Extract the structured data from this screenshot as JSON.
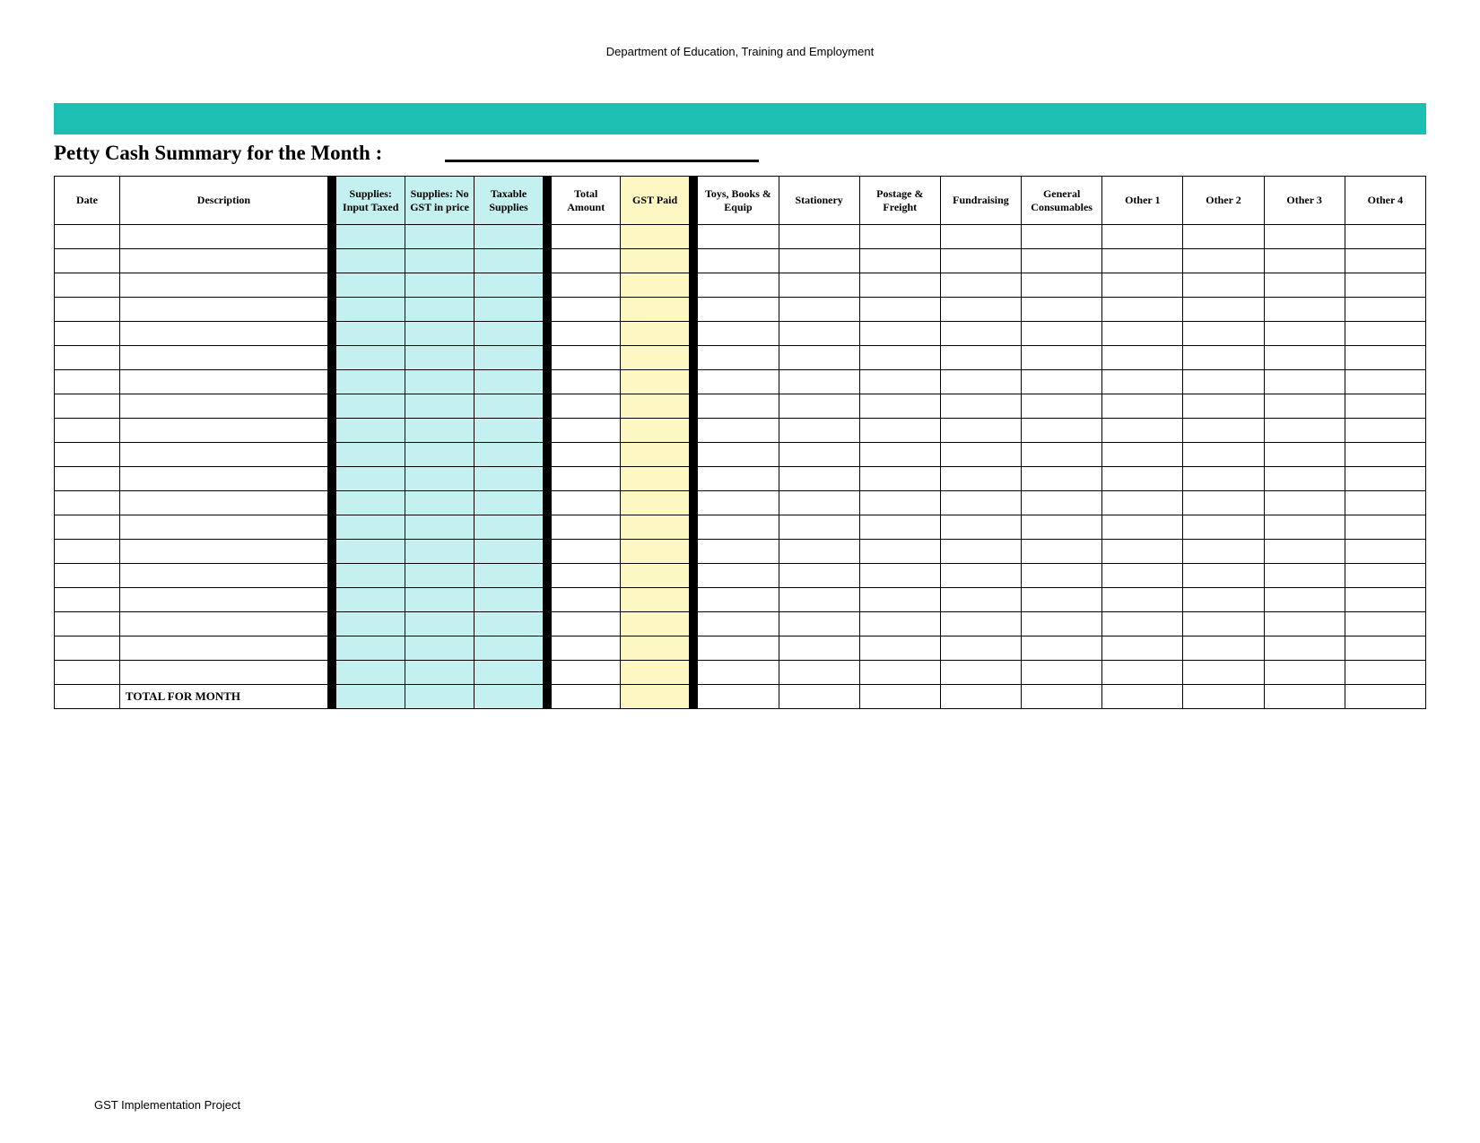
{
  "header": {
    "department": "Department of Education, Training and Employment"
  },
  "colors": {
    "teal_bar": "#1ebfb3",
    "supplies_fill": "#c5f0f0",
    "gst_fill": "#fdf7c3",
    "separator": "#000000",
    "border": "#000000",
    "background": "#ffffff"
  },
  "title": "Petty Cash Summary for the Month :",
  "table": {
    "columns": [
      {
        "key": "date",
        "label": "Date",
        "class": "col-date"
      },
      {
        "key": "description",
        "label": "Description",
        "class": "col-desc"
      },
      {
        "key": "sep1",
        "label": "",
        "class": "col-sep",
        "separator": true
      },
      {
        "key": "supplies_input_taxed",
        "label": "Supplies: Input Taxed",
        "class": "col-sup",
        "fill": "supplies"
      },
      {
        "key": "supplies_no_gst",
        "label": "Supplies: No GST in price",
        "class": "col-sup",
        "fill": "supplies"
      },
      {
        "key": "taxable_supplies",
        "label": "Taxable Supplies",
        "class": "col-sup",
        "fill": "supplies"
      },
      {
        "key": "sep2",
        "label": "",
        "class": "col-sep",
        "separator": true
      },
      {
        "key": "total_amount",
        "label": "Total Amount",
        "class": "col-tot"
      },
      {
        "key": "gst_paid",
        "label": "GST Paid",
        "class": "col-gst",
        "fill": "gst"
      },
      {
        "key": "sep3",
        "label": "",
        "class": "col-sep",
        "separator": true
      },
      {
        "key": "toys_books_equip",
        "label": "Toys, Books & Equip",
        "class": "col-cat"
      },
      {
        "key": "stationery",
        "label": "Stationery",
        "class": "col-cat"
      },
      {
        "key": "postage_freight",
        "label": "Postage & Freight",
        "class": "col-cat"
      },
      {
        "key": "fundraising",
        "label": "Fundraising",
        "class": "col-cat"
      },
      {
        "key": "general_consumables",
        "label": "General Consumables",
        "class": "col-cat"
      },
      {
        "key": "other1",
        "label": "Other 1",
        "class": "col-cat"
      },
      {
        "key": "other2",
        "label": "Other 2",
        "class": "col-cat"
      },
      {
        "key": "other3",
        "label": "Other 3",
        "class": "col-cat"
      },
      {
        "key": "other4",
        "label": "Other 4",
        "class": "col-cat"
      }
    ],
    "blank_row_count": 19,
    "total_label": "TOTAL FOR MONTH"
  },
  "footer": {
    "note": "GST Implementation Project"
  }
}
